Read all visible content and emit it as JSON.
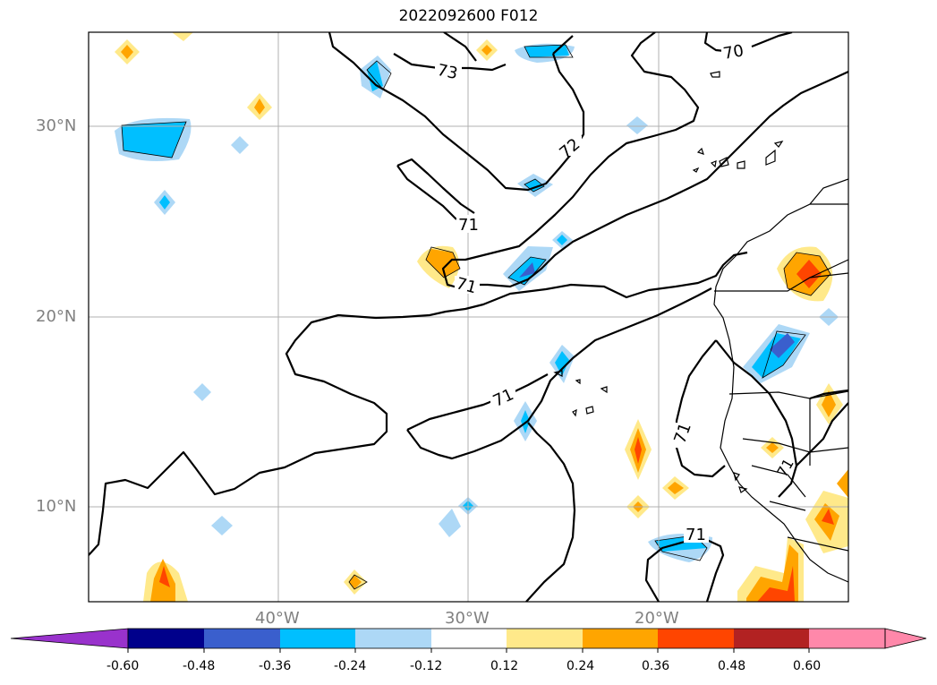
{
  "title": "2022092600 F012",
  "map": {
    "lat_labels": [
      "30°N",
      "20°N",
      "10°N"
    ],
    "lon_labels": [
      "40°W",
      "30°W",
      "20°W"
    ],
    "contour_labels": [
      "73",
      "72",
      "71",
      "71",
      "70",
      "71",
      "71",
      "71",
      "71"
    ],
    "label_color": "#808080",
    "grid_color": "#b0b0b0"
  },
  "colorbar": {
    "ticks": [
      "-0.60",
      "-0.48",
      "-0.36",
      "-0.24",
      "-0.12",
      "0.12",
      "0.24",
      "0.36",
      "0.48",
      "0.60"
    ],
    "colors": [
      "#9932cc",
      "#00008b",
      "#3a5fcd",
      "#00bfff",
      "#add8f6",
      "#ffffff",
      "#ffe98a",
      "#ffa500",
      "#ff4500",
      "#b22222",
      "#ff88aa"
    ]
  }
}
